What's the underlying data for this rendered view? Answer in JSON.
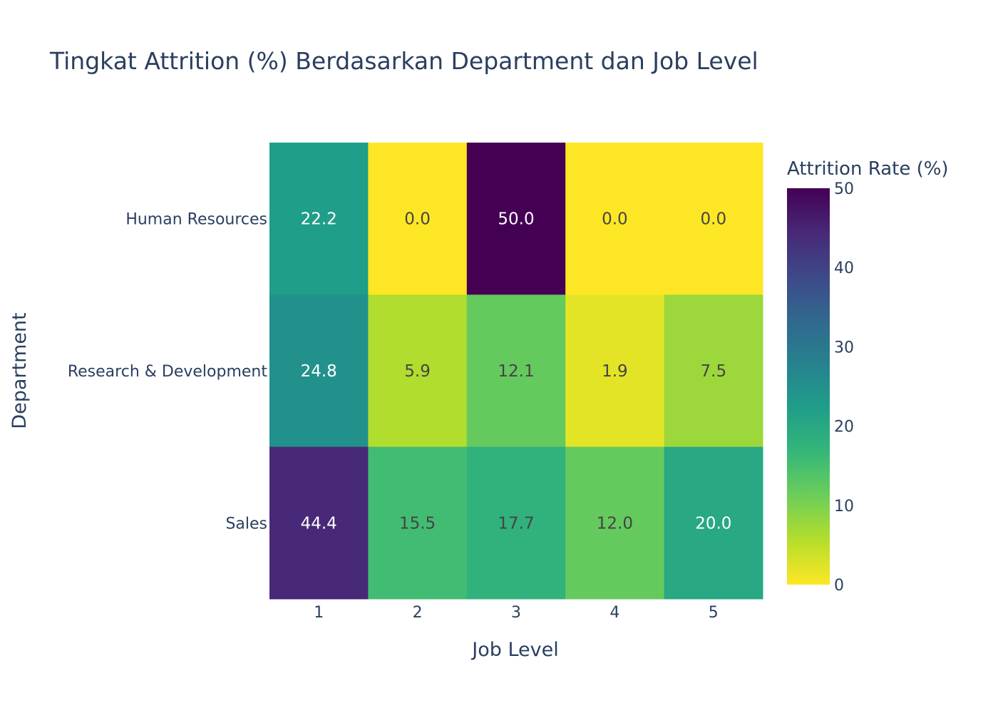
{
  "chart_data": {
    "type": "heatmap",
    "title": "Tingkat Attrition (%) Berdasarkan Department dan Job Level",
    "xlabel": "Job Level",
    "ylabel": "Department",
    "x_categories": [
      "1",
      "2",
      "3",
      "4",
      "5"
    ],
    "y_categories": [
      "Human Resources",
      "Research & Development",
      "Sales"
    ],
    "values": [
      [
        22.2,
        0.0,
        50.0,
        0.0,
        0.0
      ],
      [
        24.8,
        5.9,
        12.1,
        1.9,
        7.5
      ],
      [
        44.4,
        15.5,
        17.7,
        12.0,
        20.0
      ]
    ],
    "cell_labels": [
      [
        "22.2",
        "0.0",
        "50.0",
        "0.0",
        "0.0"
      ],
      [
        "24.8",
        "5.9",
        "12.1",
        "1.9",
        "7.5"
      ],
      [
        "44.4",
        "15.5",
        "17.7",
        "12.0",
        "20.0"
      ]
    ],
    "colorbar": {
      "title": "Attrition Rate (%)",
      "range": [
        0,
        50
      ],
      "ticks": [
        "0",
        "10",
        "20",
        "30",
        "40",
        "50"
      ],
      "colorscale": "viridis-reversed",
      "colors": [
        "#fde725",
        "#b5de2b",
        "#6ece58",
        "#35b779",
        "#1f9e89",
        "#26828e",
        "#31688e",
        "#3e4989",
        "#482878",
        "#440154"
      ]
    },
    "grid": false
  }
}
